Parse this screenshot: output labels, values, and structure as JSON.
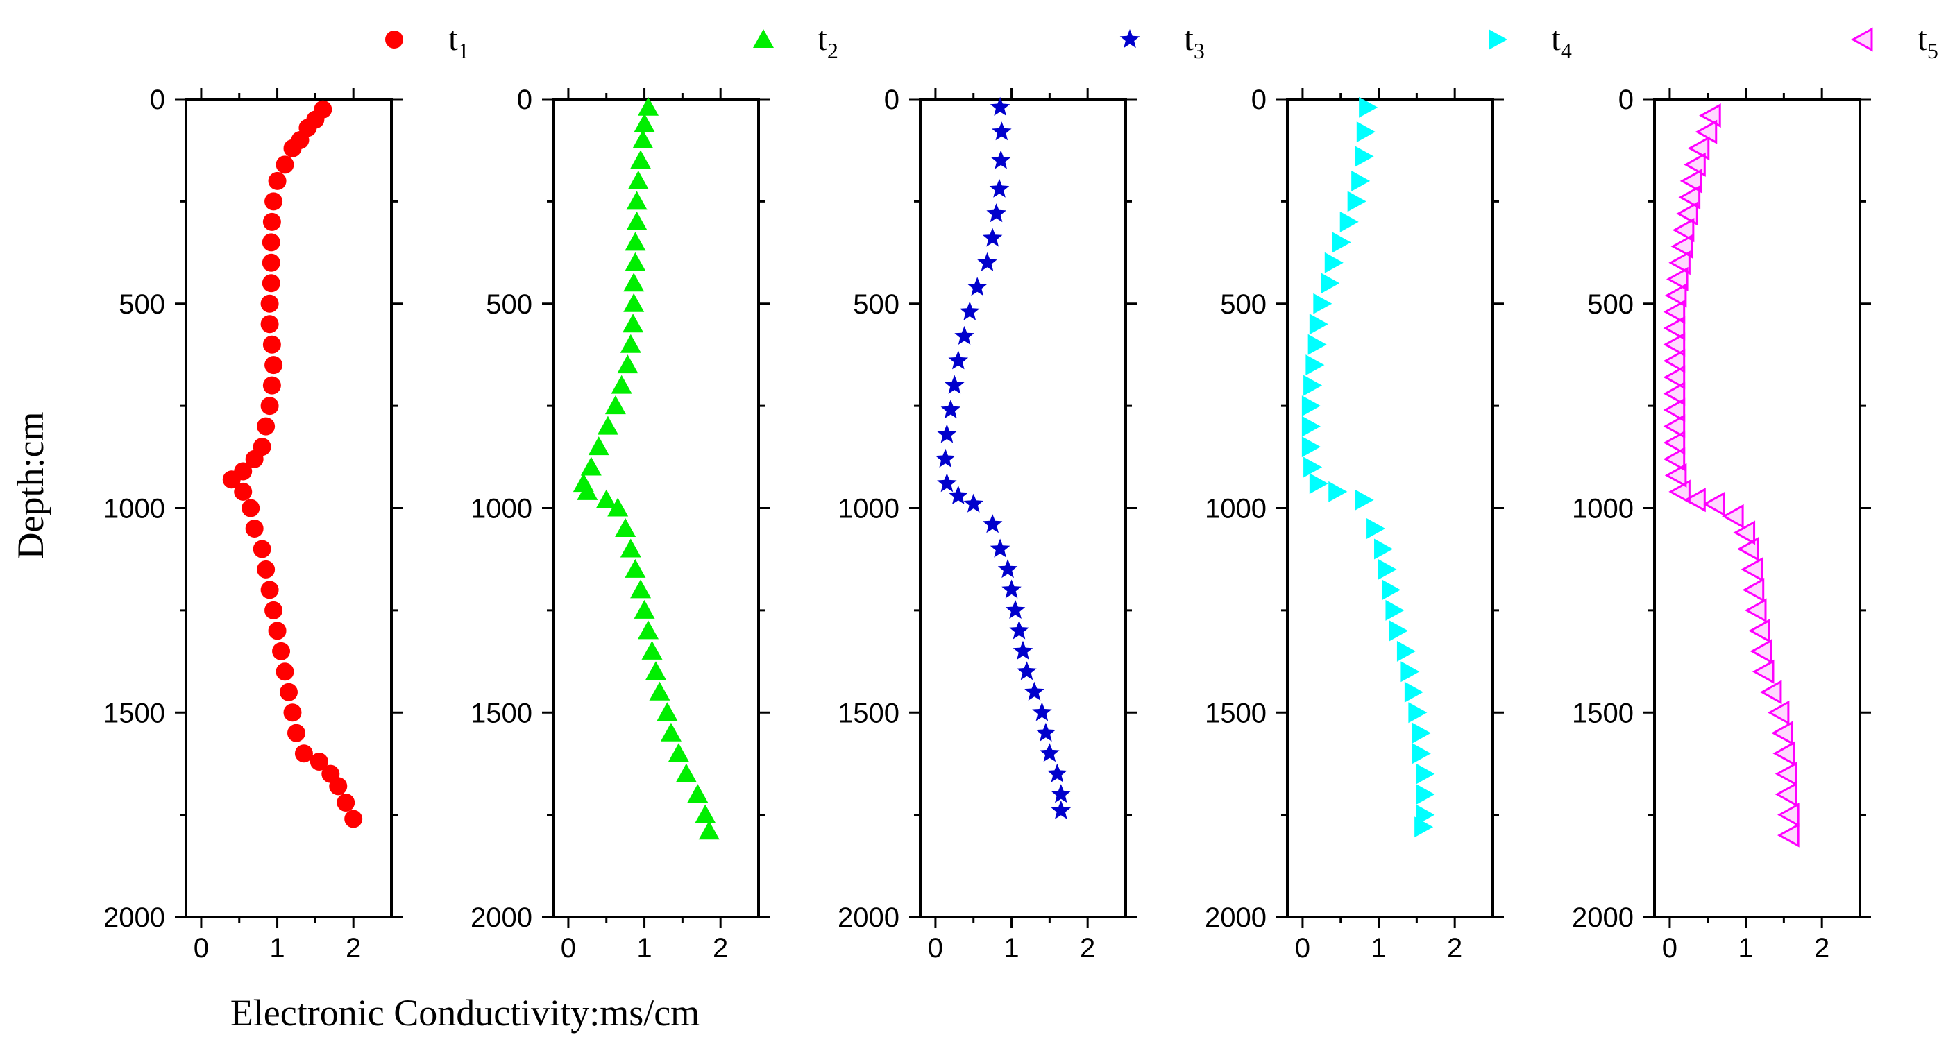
{
  "chart_data": {
    "type": "scatter",
    "xlabel": "Electronic Conductivity:ms/cm",
    "ylabel": "Depth:cm",
    "xlim": [
      -0.2,
      2.5
    ],
    "ylim": [
      0,
      2000
    ],
    "y_inverted": true,
    "xticks": [
      0,
      1,
      2
    ],
    "yticks": [
      0,
      500,
      1000,
      1500,
      2000
    ],
    "xticks_labels": [
      "0",
      "1",
      "2"
    ],
    "yticks_labels": [
      "0",
      "500",
      "1000",
      "1500",
      "2000"
    ],
    "legend_position": "top",
    "series": [
      {
        "name": "t",
        "sub": "1",
        "color": "#ff0000",
        "marker": "circle",
        "points": [
          [
            1.6,
            25
          ],
          [
            1.5,
            50
          ],
          [
            1.4,
            70
          ],
          [
            1.3,
            100
          ],
          [
            1.2,
            120
          ],
          [
            1.1,
            160
          ],
          [
            1.0,
            200
          ],
          [
            0.95,
            250
          ],
          [
            0.93,
            300
          ],
          [
            0.92,
            350
          ],
          [
            0.92,
            400
          ],
          [
            0.92,
            450
          ],
          [
            0.9,
            500
          ],
          [
            0.9,
            550
          ],
          [
            0.93,
            600
          ],
          [
            0.95,
            650
          ],
          [
            0.93,
            700
          ],
          [
            0.9,
            750
          ],
          [
            0.85,
            800
          ],
          [
            0.8,
            850
          ],
          [
            0.7,
            880
          ],
          [
            0.55,
            910
          ],
          [
            0.4,
            930
          ],
          [
            0.55,
            960
          ],
          [
            0.65,
            1000
          ],
          [
            0.7,
            1050
          ],
          [
            0.8,
            1100
          ],
          [
            0.85,
            1150
          ],
          [
            0.9,
            1200
          ],
          [
            0.95,
            1250
          ],
          [
            1.0,
            1300
          ],
          [
            1.05,
            1350
          ],
          [
            1.1,
            1400
          ],
          [
            1.15,
            1450
          ],
          [
            1.2,
            1500
          ],
          [
            1.25,
            1550
          ],
          [
            1.35,
            1600
          ],
          [
            1.55,
            1620
          ],
          [
            1.7,
            1650
          ],
          [
            1.8,
            1680
          ],
          [
            1.9,
            1720
          ],
          [
            2.0,
            1760
          ]
        ]
      },
      {
        "name": "t",
        "sub": "2",
        "color": "#00ee00",
        "marker": "triangle",
        "points": [
          [
            1.05,
            20
          ],
          [
            1.0,
            60
          ],
          [
            0.98,
            100
          ],
          [
            0.95,
            150
          ],
          [
            0.92,
            200
          ],
          [
            0.9,
            250
          ],
          [
            0.9,
            300
          ],
          [
            0.88,
            350
          ],
          [
            0.88,
            400
          ],
          [
            0.86,
            450
          ],
          [
            0.86,
            500
          ],
          [
            0.85,
            550
          ],
          [
            0.82,
            600
          ],
          [
            0.78,
            650
          ],
          [
            0.7,
            700
          ],
          [
            0.62,
            750
          ],
          [
            0.52,
            800
          ],
          [
            0.4,
            850
          ],
          [
            0.3,
            900
          ],
          [
            0.2,
            940
          ],
          [
            0.25,
            960
          ],
          [
            0.5,
            980
          ],
          [
            0.65,
            1000
          ],
          [
            0.75,
            1050
          ],
          [
            0.82,
            1100
          ],
          [
            0.88,
            1150
          ],
          [
            0.95,
            1200
          ],
          [
            1.0,
            1250
          ],
          [
            1.05,
            1300
          ],
          [
            1.1,
            1350
          ],
          [
            1.15,
            1400
          ],
          [
            1.2,
            1450
          ],
          [
            1.3,
            1500
          ],
          [
            1.35,
            1550
          ],
          [
            1.45,
            1600
          ],
          [
            1.55,
            1650
          ],
          [
            1.7,
            1700
          ],
          [
            1.8,
            1750
          ],
          [
            1.85,
            1790
          ]
        ]
      },
      {
        "name": "t",
        "sub": "3",
        "color": "#0000cc",
        "marker": "star",
        "points": [
          [
            0.85,
            20
          ],
          [
            0.87,
            80
          ],
          [
            0.86,
            150
          ],
          [
            0.84,
            220
          ],
          [
            0.8,
            280
          ],
          [
            0.75,
            340
          ],
          [
            0.68,
            400
          ],
          [
            0.55,
            460
          ],
          [
            0.45,
            520
          ],
          [
            0.38,
            580
          ],
          [
            0.3,
            640
          ],
          [
            0.25,
            700
          ],
          [
            0.2,
            760
          ],
          [
            0.15,
            820
          ],
          [
            0.13,
            880
          ],
          [
            0.15,
            940
          ],
          [
            0.3,
            970
          ],
          [
            0.5,
            990
          ],
          [
            0.75,
            1040
          ],
          [
            0.85,
            1100
          ],
          [
            0.95,
            1150
          ],
          [
            1.0,
            1200
          ],
          [
            1.05,
            1250
          ],
          [
            1.1,
            1300
          ],
          [
            1.15,
            1350
          ],
          [
            1.2,
            1400
          ],
          [
            1.3,
            1450
          ],
          [
            1.4,
            1500
          ],
          [
            1.45,
            1550
          ],
          [
            1.5,
            1600
          ],
          [
            1.6,
            1650
          ],
          [
            1.65,
            1700
          ],
          [
            1.65,
            1740
          ]
        ]
      },
      {
        "name": "t",
        "sub": "4",
        "color": "#00ffff",
        "marker": "triangle-right",
        "points": [
          [
            0.85,
            20
          ],
          [
            0.82,
            80
          ],
          [
            0.8,
            140
          ],
          [
            0.75,
            200
          ],
          [
            0.7,
            250
          ],
          [
            0.6,
            300
          ],
          [
            0.5,
            350
          ],
          [
            0.4,
            400
          ],
          [
            0.35,
            450
          ],
          [
            0.25,
            500
          ],
          [
            0.2,
            550
          ],
          [
            0.18,
            600
          ],
          [
            0.15,
            650
          ],
          [
            0.12,
            700
          ],
          [
            0.1,
            750
          ],
          [
            0.1,
            800
          ],
          [
            0.1,
            850
          ],
          [
            0.12,
            900
          ],
          [
            0.2,
            940
          ],
          [
            0.45,
            960
          ],
          [
            0.8,
            980
          ],
          [
            0.95,
            1050
          ],
          [
            1.05,
            1100
          ],
          [
            1.1,
            1150
          ],
          [
            1.15,
            1200
          ],
          [
            1.2,
            1250
          ],
          [
            1.25,
            1300
          ],
          [
            1.35,
            1350
          ],
          [
            1.4,
            1400
          ],
          [
            1.45,
            1450
          ],
          [
            1.5,
            1500
          ],
          [
            1.55,
            1550
          ],
          [
            1.55,
            1600
          ],
          [
            1.6,
            1650
          ],
          [
            1.6,
            1700
          ],
          [
            1.6,
            1750
          ],
          [
            1.58,
            1780
          ]
        ]
      },
      {
        "name": "t",
        "sub": "5",
        "color": "#ff00ff",
        "marker": "triangle-left-open",
        "points": [
          [
            0.55,
            40
          ],
          [
            0.5,
            80
          ],
          [
            0.4,
            120
          ],
          [
            0.35,
            160
          ],
          [
            0.3,
            200
          ],
          [
            0.28,
            240
          ],
          [
            0.25,
            280
          ],
          [
            0.2,
            320
          ],
          [
            0.18,
            360
          ],
          [
            0.15,
            400
          ],
          [
            0.12,
            440
          ],
          [
            0.1,
            480
          ],
          [
            0.08,
            520
          ],
          [
            0.08,
            560
          ],
          [
            0.08,
            600
          ],
          [
            0.08,
            640
          ],
          [
            0.08,
            680
          ],
          [
            0.08,
            720
          ],
          [
            0.08,
            760
          ],
          [
            0.08,
            800
          ],
          [
            0.08,
            840
          ],
          [
            0.08,
            880
          ],
          [
            0.1,
            920
          ],
          [
            0.15,
            960
          ],
          [
            0.35,
            980
          ],
          [
            0.6,
            990
          ],
          [
            0.85,
            1020
          ],
          [
            1.0,
            1060
          ],
          [
            1.05,
            1100
          ],
          [
            1.1,
            1150
          ],
          [
            1.12,
            1200
          ],
          [
            1.15,
            1250
          ],
          [
            1.2,
            1300
          ],
          [
            1.22,
            1350
          ],
          [
            1.25,
            1400
          ],
          [
            1.35,
            1450
          ],
          [
            1.45,
            1500
          ],
          [
            1.5,
            1550
          ],
          [
            1.52,
            1600
          ],
          [
            1.55,
            1650
          ],
          [
            1.55,
            1700
          ],
          [
            1.58,
            1750
          ],
          [
            1.58,
            1800
          ]
        ]
      }
    ]
  }
}
